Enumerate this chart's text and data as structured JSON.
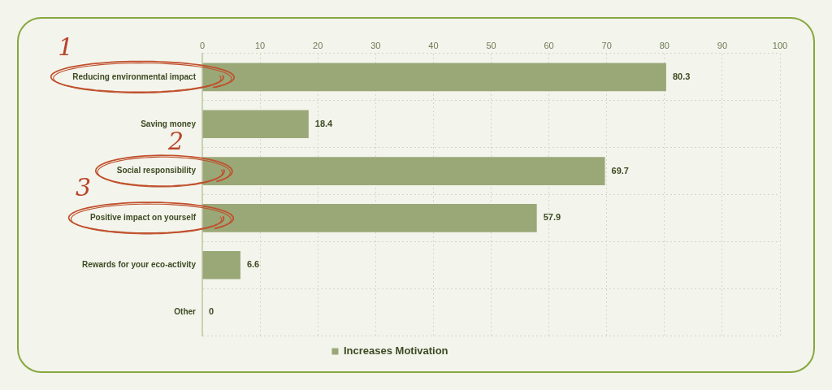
{
  "chart_data": {
    "type": "bar",
    "orientation": "horizontal",
    "categories": [
      "Reducing environmental impact",
      "Saving money",
      "Social responsibility",
      "Positive impact on yourself",
      "Rewards for your eco-activity",
      "Other"
    ],
    "series": [
      {
        "name": "Increases Motivation",
        "color": "#9aa878",
        "values": [
          80.3,
          18.4,
          69.7,
          57.9,
          6.6,
          0
        ]
      }
    ],
    "xlim": [
      0,
      100
    ],
    "xticks": [
      0,
      10,
      20,
      30,
      40,
      50,
      60,
      70,
      80,
      90,
      100
    ],
    "grid": true,
    "legend": "bottom",
    "data_labels": true,
    "annotations": [
      "1",
      "2",
      "3"
    ]
  }
}
